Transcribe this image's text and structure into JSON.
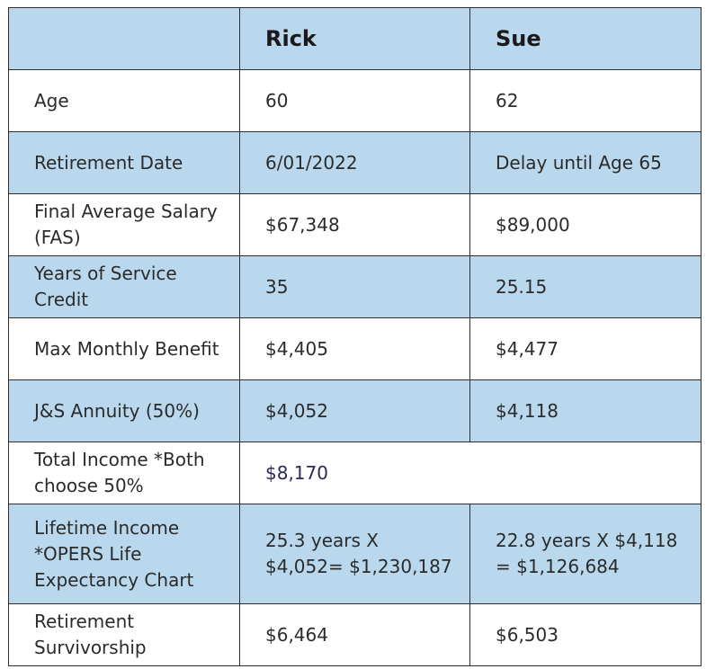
{
  "header": {
    "corner": "",
    "person1": "Rick",
    "person2": "Sue"
  },
  "rows": [
    {
      "label": "Age",
      "rick": "60",
      "sue": "62"
    },
    {
      "label": "Retirement Date",
      "rick": "6/01/2022",
      "sue": "Delay until Age 65"
    },
    {
      "label": "Final Average Salary (FAS)",
      "rick": "$67,348",
      "sue": "$89,000"
    },
    {
      "label": "Years of Service Credit",
      "rick": "35",
      "sue": "25.15"
    },
    {
      "label": "Max Monthly Benefit",
      "rick": "$4,405",
      "sue": "$4,477"
    },
    {
      "label": "J&S Annuity (50%)",
      "rick": "$4,052",
      "sue": "$4,118"
    },
    {
      "label": "Total Income *Both choose 50%",
      "combined": "$8,170"
    },
    {
      "label": "Lifetime Income *OPERS Life Expectancy Chart",
      "rick": "25.3 years X $4,052= $1,230,187",
      "sue": "22.8 years X $4,118 = $1,126,684"
    },
    {
      "label": "Retirement Survivorship",
      "rick": "$6,464",
      "sue": "$6,503"
    }
  ],
  "colors": {
    "blue_row": "#bad8ed",
    "white_row": "#ffffff",
    "border": "#2e2e2e",
    "total_text": "#2b2a5a"
  }
}
